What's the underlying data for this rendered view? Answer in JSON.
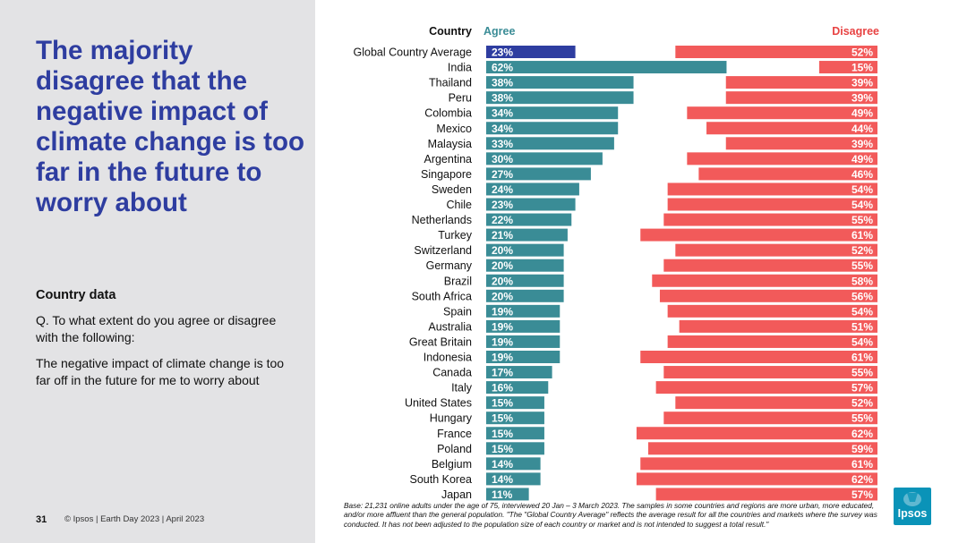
{
  "headline": "The majority disagree that the negative impact of climate change is too far in the future to worry about",
  "subhead": "Country data",
  "question": "Q. To what extent do you agree or disagree with the following:",
  "statement": "The negative impact of climate change is too far off in the future for me to worry about",
  "footer": {
    "page_number": "31",
    "text": "© Ipsos | Earth Day 2023 | April 2023"
  },
  "base_note": "Base: 21,231 online adults under the age of 75, interviewed 20 Jan – 3 March 2023. The samples in some countries and regions are more urban, more educated, and/or more affluent than the general population. \"The \"Global Country Average\" reflects the average result for all the countries and markets where the survey was conducted. It has not been adjusted to the population size of each country or market and is not intended to suggest a total result.\"",
  "logo_text": "Ipsos",
  "colors": {
    "headline": "#2e3da0",
    "agree": "#3a8c96",
    "agree_highlight": "#2e3da0",
    "disagree": "#f25a5a",
    "agree_label": "#3a8c96",
    "disagree_label": "#e84343",
    "panel_bg": "#e3e3e5"
  },
  "chart_data": {
    "type": "bar",
    "title": "",
    "headers": {
      "country": "Country",
      "agree": "Agree",
      "disagree": "Disagree"
    },
    "categories": [
      "Global Country Average",
      "India",
      "Thailand",
      "Peru",
      "Colombia",
      "Mexico",
      "Malaysia",
      "Argentina",
      "Singapore",
      "Sweden",
      "Chile",
      "Netherlands",
      "Turkey",
      "Switzerland",
      "Germany",
      "Brazil",
      "South Africa",
      "Spain",
      "Australia",
      "Great Britain",
      "Indonesia",
      "Canada",
      "Italy",
      "United States",
      "Hungary",
      "France",
      "Poland",
      "Belgium",
      "South Korea",
      "Japan"
    ],
    "series": [
      {
        "name": "Agree",
        "values": [
          23,
          62,
          38,
          38,
          34,
          34,
          33,
          30,
          27,
          24,
          23,
          22,
          21,
          20,
          20,
          20,
          20,
          19,
          19,
          19,
          19,
          17,
          16,
          15,
          15,
          15,
          15,
          14,
          14,
          11
        ]
      },
      {
        "name": "Disagree",
        "values": [
          52,
          15,
          39,
          39,
          49,
          44,
          39,
          49,
          46,
          54,
          54,
          55,
          61,
          52,
          55,
          58,
          56,
          54,
          51,
          54,
          61,
          55,
          57,
          52,
          55,
          62,
          59,
          61,
          62,
          57
        ]
      }
    ],
    "value_suffix": "%",
    "highlight_category": "Global Country Average"
  }
}
